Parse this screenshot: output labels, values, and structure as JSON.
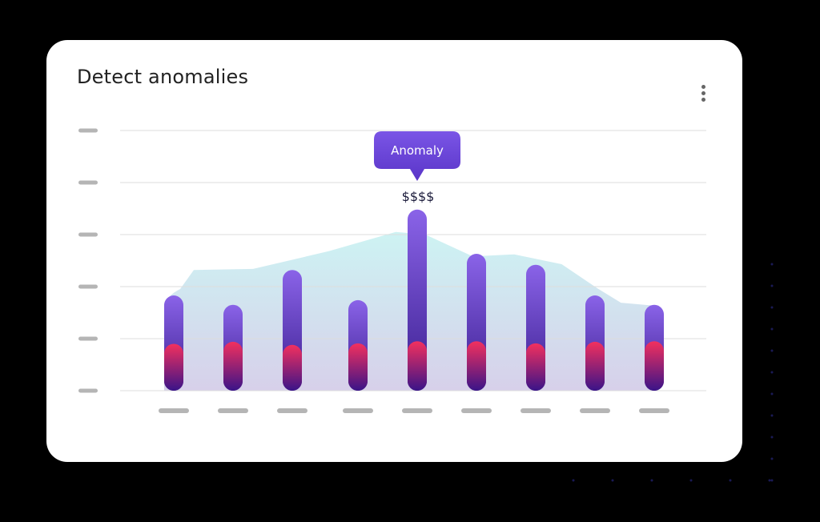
{
  "card": {
    "title": "Detect anomalies",
    "menu_icon": "more-vertical-icon"
  },
  "chart_data": {
    "type": "bar",
    "title": "Detect anomalies",
    "xlabel": "",
    "ylabel": "",
    "ylim": [
      0,
      5
    ],
    "grid": true,
    "categories": [
      "",
      "",
      "",
      "",
      "",
      "",
      "",
      "",
      ""
    ],
    "series": [
      {
        "values": [
          1.83,
          1.65,
          2.32,
          1.74,
          3.48,
          2.63,
          2.42,
          1.83,
          1.65
        ]
      },
      {
        "values": [
          0.9,
          0.94,
          0.88,
          0.91,
          0.95,
          0.95,
          0.91,
          0.94,
          0.95
        ]
      }
    ],
    "area": {
      "x": [
        0,
        0.5,
        1.5,
        2.7,
        3.8,
        4.3,
        5.1,
        5.8,
        6.6,
        7.2,
        7.6,
        8.2
      ],
      "y": [
        1.8,
        2.32,
        2.34,
        2.68,
        3.05,
        3.0,
        2.58,
        2.62,
        2.43,
        1.97,
        1.69,
        1.63
      ]
    },
    "annotation": {
      "label": "Anomaly",
      "value_label": "$$$$",
      "index": 4
    },
    "colors": {
      "bar_top": "#8a63e8",
      "bar_mid": "#3b1f8f",
      "bar_red": "#f2305e",
      "bar_bottom": "#3a1488",
      "area_top": "#cdf3f3",
      "area_bottom": "#d7d0ea",
      "tooltip": "#6a45d8",
      "grid": "#dddddd",
      "tick": "#b5b5b5"
    }
  }
}
